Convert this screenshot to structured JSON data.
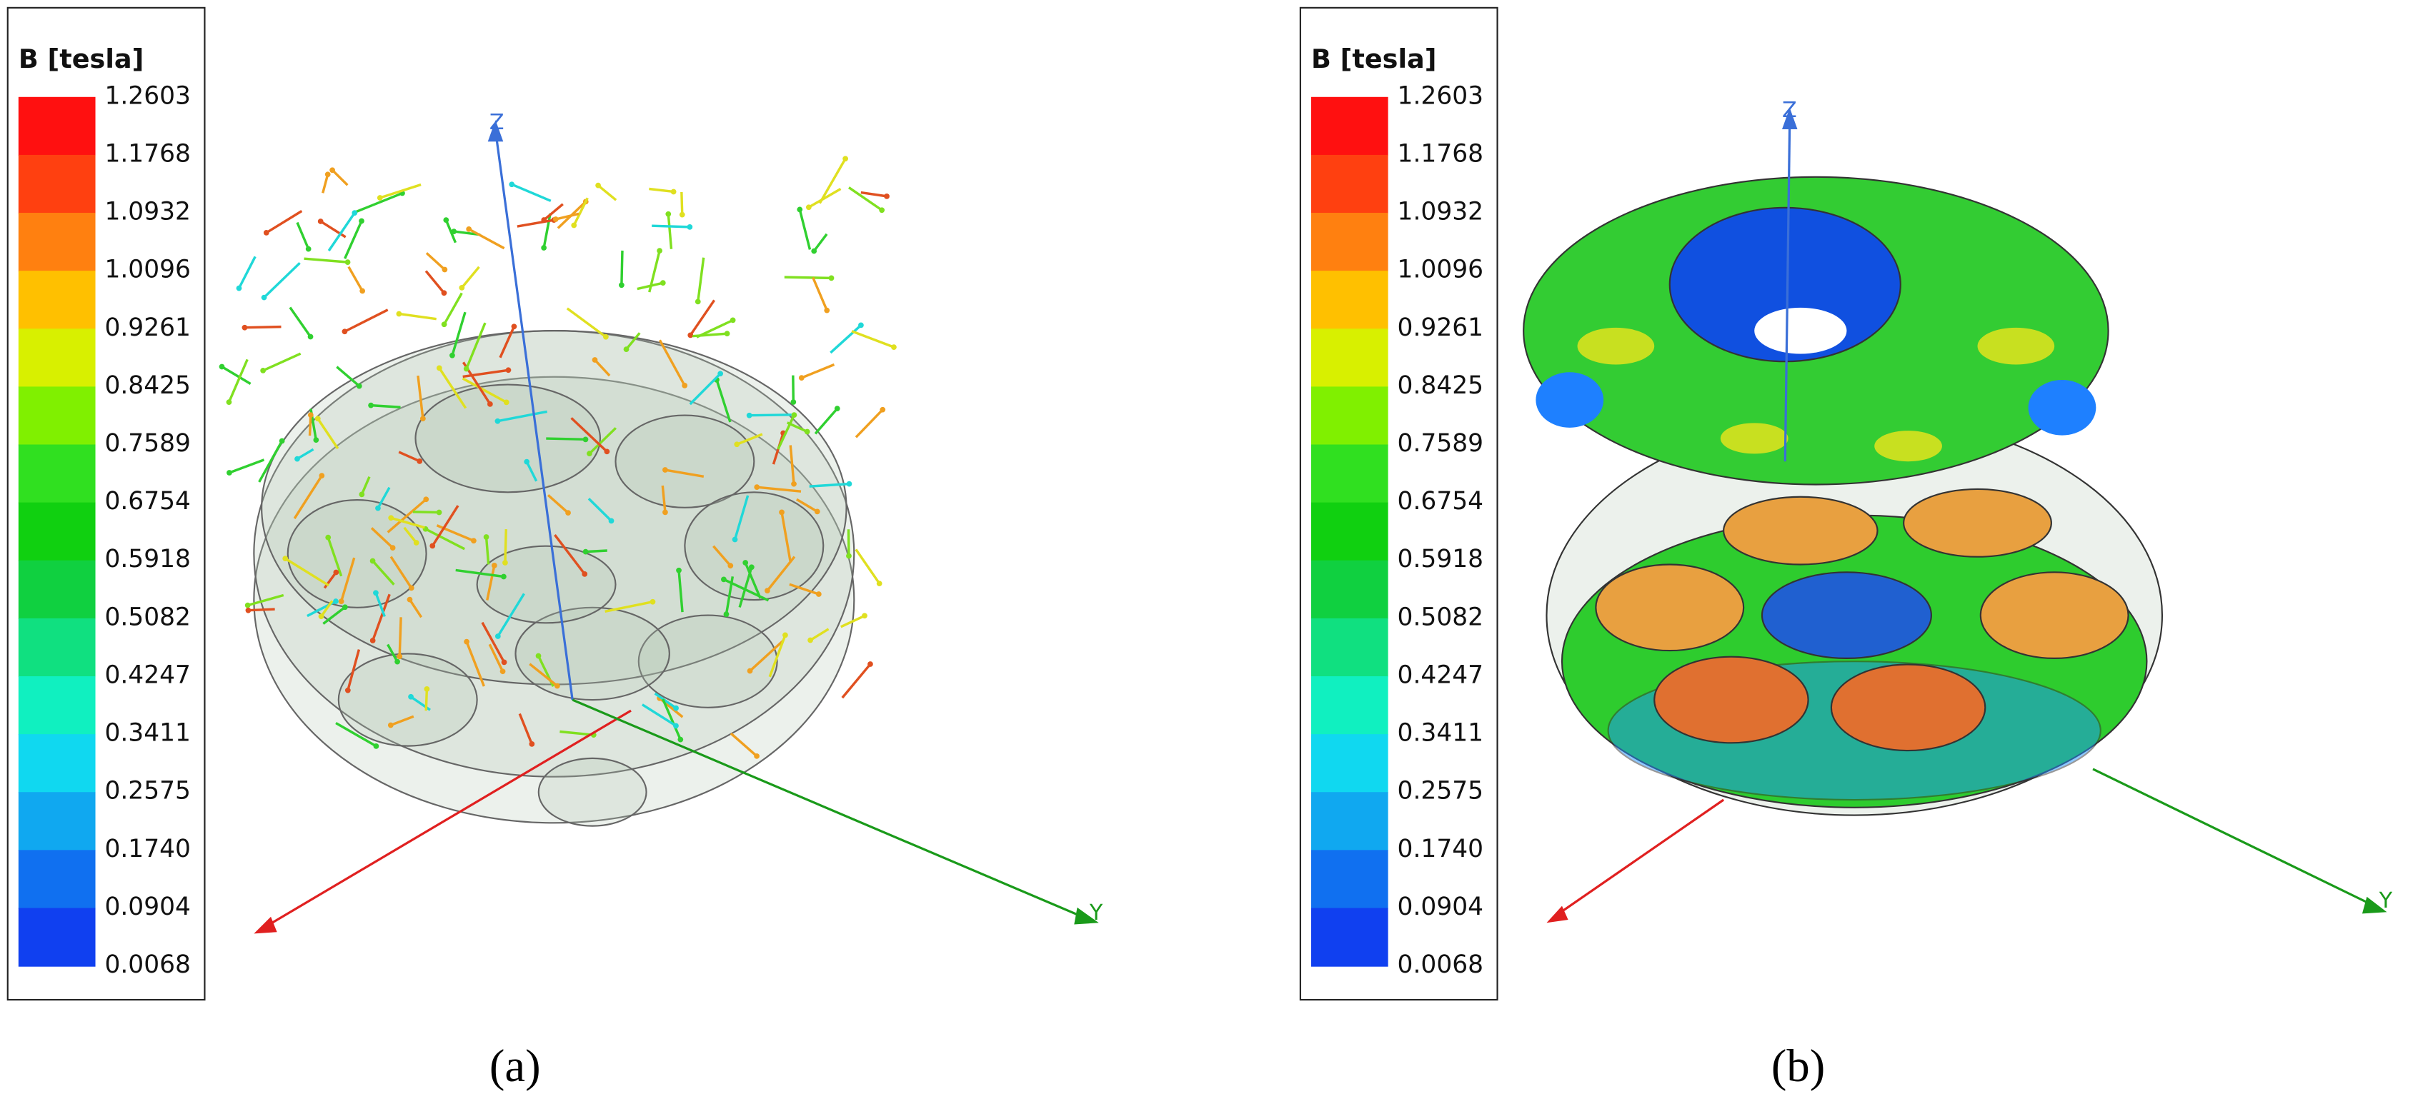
{
  "panels": [
    {
      "legend": {
        "title": "B [tesla]",
        "labels": [
          "1.2603",
          "1.1768",
          "1.0932",
          "1.0096",
          "0.9261",
          "0.8425",
          "0.7589",
          "0.6754",
          "0.5918",
          "0.5082",
          "0.4247",
          "0.3411",
          "0.2575",
          "0.1740",
          "0.0904",
          "0.0068"
        ]
      },
      "axis_labels": {
        "z": "Z",
        "y": "Y"
      },
      "caption": "(a)"
    },
    {
      "legend": {
        "title": "B [tesla]",
        "labels": [
          "1.2603",
          "1.1768",
          "1.0932",
          "1.0096",
          "0.9261",
          "0.8425",
          "0.7589",
          "0.6754",
          "0.5918",
          "0.5082",
          "0.4247",
          "0.3411",
          "0.2575",
          "0.1740",
          "0.0904",
          "0.0068"
        ]
      },
      "axis_labels": {
        "z": "Z",
        "y": "Y"
      },
      "caption": "(b)"
    }
  ]
}
